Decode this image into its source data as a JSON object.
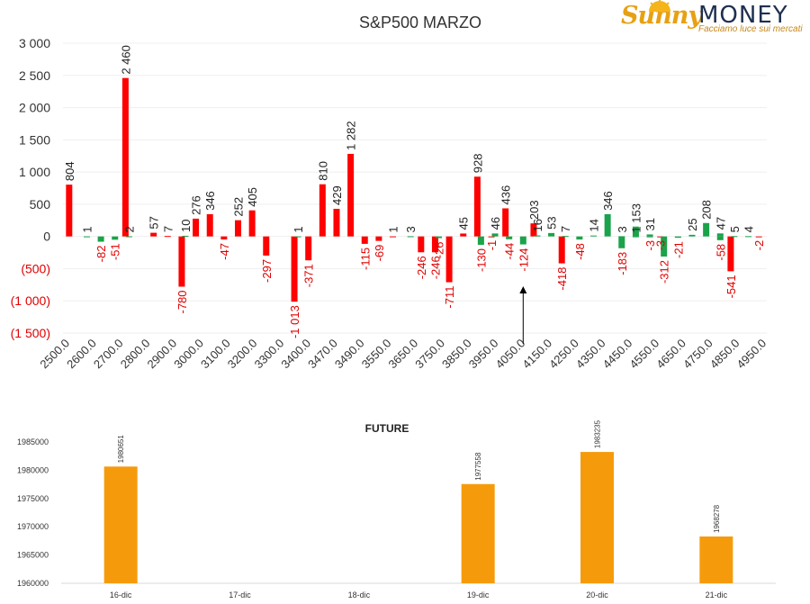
{
  "logo": {
    "brand_sunny": "Sunny",
    "brand_money": "MONEY",
    "tagline": "Facciamo luce sui mercati"
  },
  "colors": {
    "positive_call": "#ff0000",
    "positive_put": "#1aa34a",
    "negative_label": "#e00000",
    "future_bar": "#f59b0b"
  },
  "chart_data": [
    {
      "type": "bar",
      "title": "S&P500 MARZO",
      "ylim": [
        -1500,
        3000
      ],
      "y_ticks": [
        "3 000",
        "2 500",
        "2 000",
        "1 500",
        "1 000",
        "500",
        "0",
        "(500)",
        "(1 000)",
        "(1 500)"
      ],
      "x_tick_labels": [
        "2500.0",
        "2600.0",
        "2700.0",
        "2800.0",
        "2900.0",
        "3000.0",
        "3100.0",
        "3200.0",
        "3300.0",
        "3400.0",
        "3470.0",
        "3490.0",
        "3550.0",
        "3650.0",
        "3750.0",
        "3850.0",
        "3950.0",
        "4050.0",
        "4150.0",
        "4250.0",
        "4350.0",
        "4450.0",
        "4550.0",
        "4650.0",
        "4750.0",
        "4850.0",
        "4950.0"
      ],
      "series": [
        {
          "color": "#ff0000",
          "points": [
            {
              "slot": 0,
              "value": 804,
              "label": "804"
            },
            {
              "slot": 4,
              "value": 2460,
              "label": "2 460"
            },
            {
              "slot": 6,
              "value": 57,
              "label": "57"
            },
            {
              "slot": 7,
              "value": 7,
              "label": "7"
            },
            {
              "slot": 8,
              "value": -780,
              "label": "-780"
            },
            {
              "slot": 9,
              "value": 276,
              "label": "276"
            },
            {
              "slot": 10,
              "value": 346,
              "label": "346"
            },
            {
              "slot": 11,
              "value": -47,
              "label": "-47"
            },
            {
              "slot": 12,
              "value": 252,
              "label": "252"
            },
            {
              "slot": 13,
              "value": 405,
              "label": "405"
            },
            {
              "slot": 14,
              "value": -297,
              "label": "-297"
            },
            {
              "slot": 16,
              "value": -1013,
              "label": "-1 013"
            },
            {
              "slot": 17,
              "value": -371,
              "label": "-371"
            },
            {
              "slot": 18,
              "value": 810,
              "label": "810"
            },
            {
              "slot": 19,
              "value": 429,
              "label": "429"
            },
            {
              "slot": 20,
              "value": 1282,
              "label": "1 282"
            },
            {
              "slot": 21,
              "value": -115,
              "label": "-115"
            },
            {
              "slot": 22,
              "value": -69,
              "label": "-69"
            },
            {
              "slot": 23,
              "value": 1,
              "label": "1"
            },
            {
              "slot": 25,
              "value": -246,
              "label": "-246"
            },
            {
              "slot": 26,
              "value": -246,
              "label": "-246"
            },
            {
              "slot": 27,
              "value": -711,
              "label": "-711"
            },
            {
              "slot": 28,
              "value": 45,
              "label": "45"
            },
            {
              "slot": 29,
              "value": 928,
              "label": "928"
            },
            {
              "slot": 30,
              "value": -1,
              "label": "-1"
            },
            {
              "slot": 31,
              "value": 436,
              "label": "436"
            },
            {
              "slot": 33,
              "value": 203,
              "label": "203"
            },
            {
              "slot": 35,
              "value": -418,
              "label": "-418"
            },
            {
              "slot": 42,
              "value": -3,
              "label": "-3"
            },
            {
              "slot": 47,
              "value": -541,
              "label": "-541"
            },
            {
              "slot": 49,
              "value": -2,
              "label": "-2"
            }
          ]
        },
        {
          "color": "#1aa34a",
          "points": [
            {
              "slot": 1,
              "value": 1,
              "label": "1"
            },
            {
              "slot": 2,
              "value": -82,
              "label": "-82"
            },
            {
              "slot": 3,
              "value": -51,
              "label": "-51"
            },
            {
              "slot": 4,
              "value": 2,
              "label": "2"
            },
            {
              "slot": 8,
              "value": 10,
              "label": "10"
            },
            {
              "slot": 16,
              "value": 1,
              "label": "1"
            },
            {
              "slot": 24,
              "value": 3,
              "label": "3"
            },
            {
              "slot": 26,
              "value": -26,
              "label": "-26"
            },
            {
              "slot": 29,
              "value": -130,
              "label": "-130"
            },
            {
              "slot": 30,
              "value": 46,
              "label": "46"
            },
            {
              "slot": 31,
              "value": -44,
              "label": "-44"
            },
            {
              "slot": 32,
              "value": -124,
              "label": "-124"
            },
            {
              "slot": 33,
              "value": 16,
              "label": "16"
            },
            {
              "slot": 34,
              "value": 53,
              "label": "53"
            },
            {
              "slot": 35,
              "value": 7,
              "label": "7"
            },
            {
              "slot": 36,
              "value": -48,
              "label": "-48"
            },
            {
              "slot": 37,
              "value": 14,
              "label": "14"
            },
            {
              "slot": 38,
              "value": 346,
              "label": "346"
            },
            {
              "slot": 39,
              "value": 3,
              "label": "3"
            },
            {
              "slot": 39,
              "value": -183,
              "label": "-183"
            },
            {
              "slot": 40,
              "value": 1,
              "label": "1"
            },
            {
              "slot": 40,
              "value": 153,
              "label": "153"
            },
            {
              "slot": 41,
              "value": -3,
              "label": "-3"
            },
            {
              "slot": 41,
              "value": 31,
              "label": "31"
            },
            {
              "slot": 42,
              "value": -312,
              "label": "-312"
            },
            {
              "slot": 43,
              "value": -21,
              "label": "-21"
            },
            {
              "slot": 44,
              "value": 25,
              "label": "25"
            },
            {
              "slot": 45,
              "value": 208,
              "label": "208"
            },
            {
              "slot": 46,
              "value": 47,
              "label": "47"
            },
            {
              "slot": 46,
              "value": -58,
              "label": "-58"
            },
            {
              "slot": 47,
              "value": 5,
              "label": "5"
            },
            {
              "slot": 48,
              "value": 4,
              "label": "4"
            }
          ]
        }
      ],
      "arrow_slot": 32
    },
    {
      "type": "bar",
      "title": "FUTURE",
      "ylim": [
        1960000,
        1985000
      ],
      "y_ticks": [
        "1985000",
        "1980000",
        "1975000",
        "1970000",
        "1965000",
        "1960000"
      ],
      "categories": [
        "16-dic",
        "17-dic",
        "18-dic",
        "19-dic",
        "20-dic",
        "21-dic"
      ],
      "values": [
        1980651,
        null,
        null,
        1977558,
        1983235,
        1968278
      ],
      "labels": [
        "1980651",
        "",
        "",
        "1977558",
        "1983235",
        "1968278"
      ]
    }
  ]
}
